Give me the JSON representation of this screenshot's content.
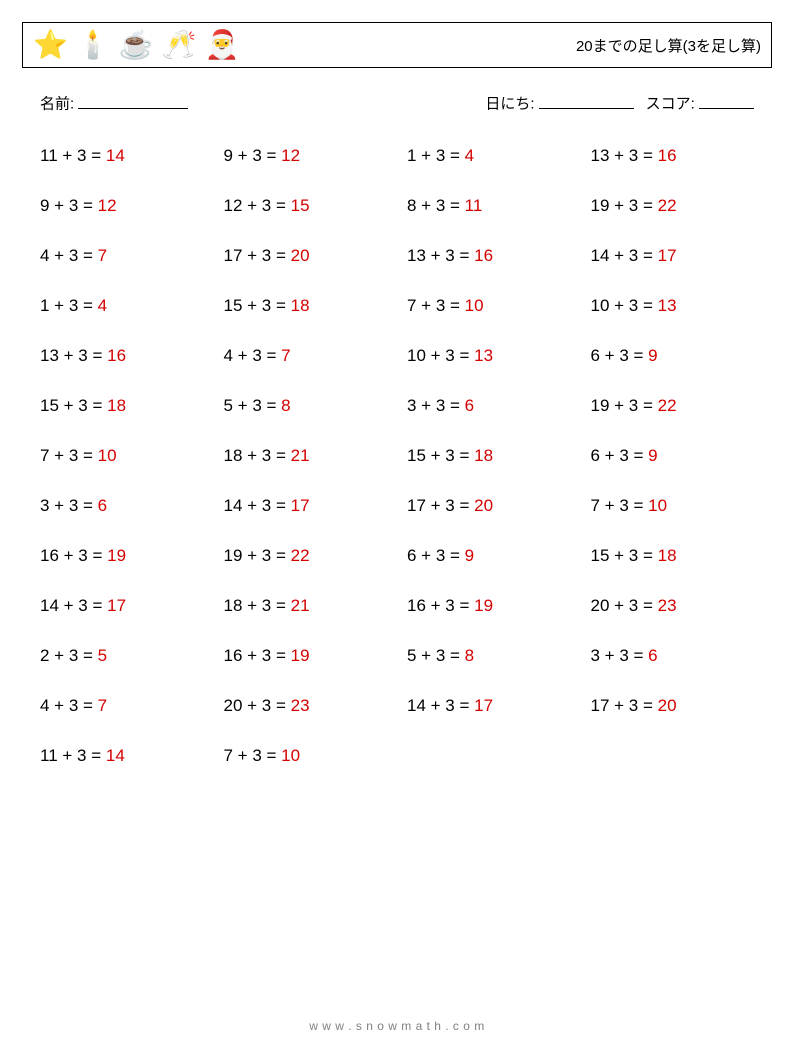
{
  "header": {
    "title": "20までの足し算(3を足し算)",
    "icons": [
      "⭐",
      "🕯️",
      "☕",
      "🥂",
      "🎅"
    ]
  },
  "meta": {
    "name_label": "名前:",
    "date_label": "日にち:",
    "score_label": "スコア:"
  },
  "footer": {
    "text": "w w w . s n o w m a t h . c o m"
  },
  "style": {
    "answer_color": "#d40000",
    "text_color": "#000000",
    "footer_color": "#808080",
    "border_color": "#000000",
    "font_size_problem": 17,
    "font_size_title": 15,
    "font_size_meta": 15,
    "columns": 4,
    "row_gap": 30,
    "col_gap": 20
  },
  "problems": [
    {
      "a": 11,
      "b": 3,
      "ans": 14
    },
    {
      "a": 9,
      "b": 3,
      "ans": 12
    },
    {
      "a": 1,
      "b": 3,
      "ans": 4
    },
    {
      "a": 13,
      "b": 3,
      "ans": 16
    },
    {
      "a": 9,
      "b": 3,
      "ans": 12
    },
    {
      "a": 12,
      "b": 3,
      "ans": 15
    },
    {
      "a": 8,
      "b": 3,
      "ans": 11
    },
    {
      "a": 19,
      "b": 3,
      "ans": 22
    },
    {
      "a": 4,
      "b": 3,
      "ans": 7
    },
    {
      "a": 17,
      "b": 3,
      "ans": 20
    },
    {
      "a": 13,
      "b": 3,
      "ans": 16
    },
    {
      "a": 14,
      "b": 3,
      "ans": 17
    },
    {
      "a": 1,
      "b": 3,
      "ans": 4
    },
    {
      "a": 15,
      "b": 3,
      "ans": 18
    },
    {
      "a": 7,
      "b": 3,
      "ans": 10
    },
    {
      "a": 10,
      "b": 3,
      "ans": 13
    },
    {
      "a": 13,
      "b": 3,
      "ans": 16
    },
    {
      "a": 4,
      "b": 3,
      "ans": 7
    },
    {
      "a": 10,
      "b": 3,
      "ans": 13
    },
    {
      "a": 6,
      "b": 3,
      "ans": 9
    },
    {
      "a": 15,
      "b": 3,
      "ans": 18
    },
    {
      "a": 5,
      "b": 3,
      "ans": 8
    },
    {
      "a": 3,
      "b": 3,
      "ans": 6
    },
    {
      "a": 19,
      "b": 3,
      "ans": 22
    },
    {
      "a": 7,
      "b": 3,
      "ans": 10
    },
    {
      "a": 18,
      "b": 3,
      "ans": 21
    },
    {
      "a": 15,
      "b": 3,
      "ans": 18
    },
    {
      "a": 6,
      "b": 3,
      "ans": 9
    },
    {
      "a": 3,
      "b": 3,
      "ans": 6
    },
    {
      "a": 14,
      "b": 3,
      "ans": 17
    },
    {
      "a": 17,
      "b": 3,
      "ans": 20
    },
    {
      "a": 7,
      "b": 3,
      "ans": 10
    },
    {
      "a": 16,
      "b": 3,
      "ans": 19
    },
    {
      "a": 19,
      "b": 3,
      "ans": 22
    },
    {
      "a": 6,
      "b": 3,
      "ans": 9
    },
    {
      "a": 15,
      "b": 3,
      "ans": 18
    },
    {
      "a": 14,
      "b": 3,
      "ans": 17
    },
    {
      "a": 18,
      "b": 3,
      "ans": 21
    },
    {
      "a": 16,
      "b": 3,
      "ans": 19
    },
    {
      "a": 20,
      "b": 3,
      "ans": 23
    },
    {
      "a": 2,
      "b": 3,
      "ans": 5
    },
    {
      "a": 16,
      "b": 3,
      "ans": 19
    },
    {
      "a": 5,
      "b": 3,
      "ans": 8
    },
    {
      "a": 3,
      "b": 3,
      "ans": 6
    },
    {
      "a": 4,
      "b": 3,
      "ans": 7
    },
    {
      "a": 20,
      "b": 3,
      "ans": 23
    },
    {
      "a": 14,
      "b": 3,
      "ans": 17
    },
    {
      "a": 17,
      "b": 3,
      "ans": 20
    },
    {
      "a": 11,
      "b": 3,
      "ans": 14
    },
    {
      "a": 7,
      "b": 3,
      "ans": 10
    }
  ]
}
